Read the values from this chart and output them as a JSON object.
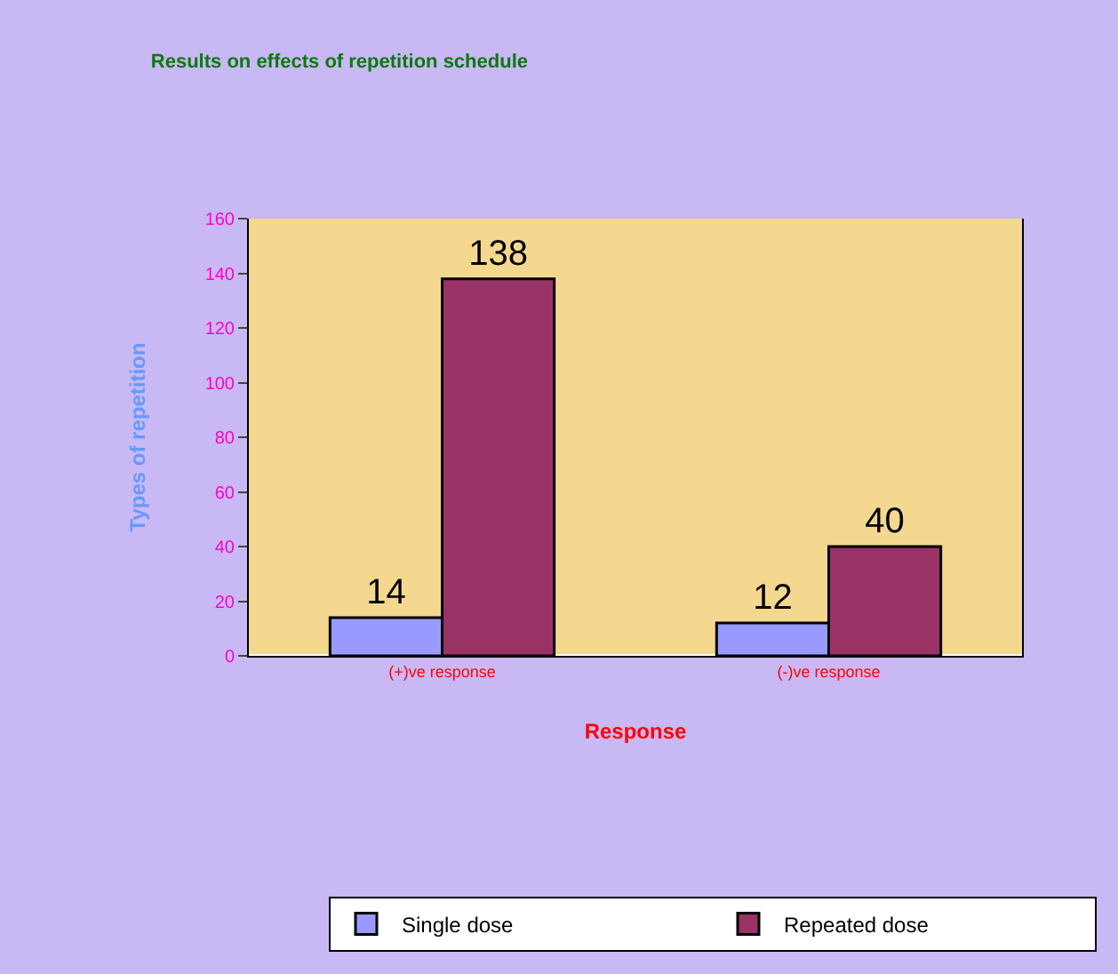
{
  "chart_data": {
    "type": "bar",
    "title": "Results on effects of repetition schedule",
    "xlabel": "Response",
    "ylabel": "Types of repetition",
    "categories": [
      "(+)ve response",
      "(-)ve response"
    ],
    "series": [
      {
        "name": "Single dose",
        "color": "#9999ff",
        "values": [
          14,
          12
        ]
      },
      {
        "name": "Repeated dose",
        "color": "#993366",
        "values": [
          138,
          40
        ]
      }
    ],
    "ylim": [
      0,
      160
    ],
    "yticks": [
      0,
      20,
      40,
      60,
      80,
      100,
      120,
      140,
      160
    ],
    "grid": false,
    "legend": "bottom",
    "data_labels": true
  }
}
